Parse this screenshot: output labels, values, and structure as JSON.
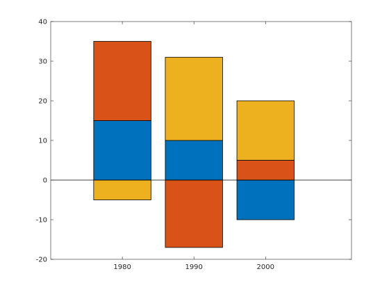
{
  "chart_data": {
    "type": "bar",
    "stacked": true,
    "title": "",
    "xlabel": "",
    "ylabel": "",
    "categories": [
      "1980",
      "1990",
      "2000"
    ],
    "xlim": [
      1970,
      2012
    ],
    "ylim": [
      -20,
      40
    ],
    "yticks": [
      -20,
      -10,
      0,
      10,
      20,
      30,
      40
    ],
    "grid": false,
    "baseline": 0,
    "series": [
      {
        "values": [
          15,
          10,
          -10
        ],
        "color": "#0072BD"
      },
      {
        "values": [
          20,
          -17,
          5
        ],
        "color": "#D95319"
      },
      {
        "values": [
          -5,
          21,
          15
        ],
        "color": "#EDB120"
      }
    ]
  }
}
